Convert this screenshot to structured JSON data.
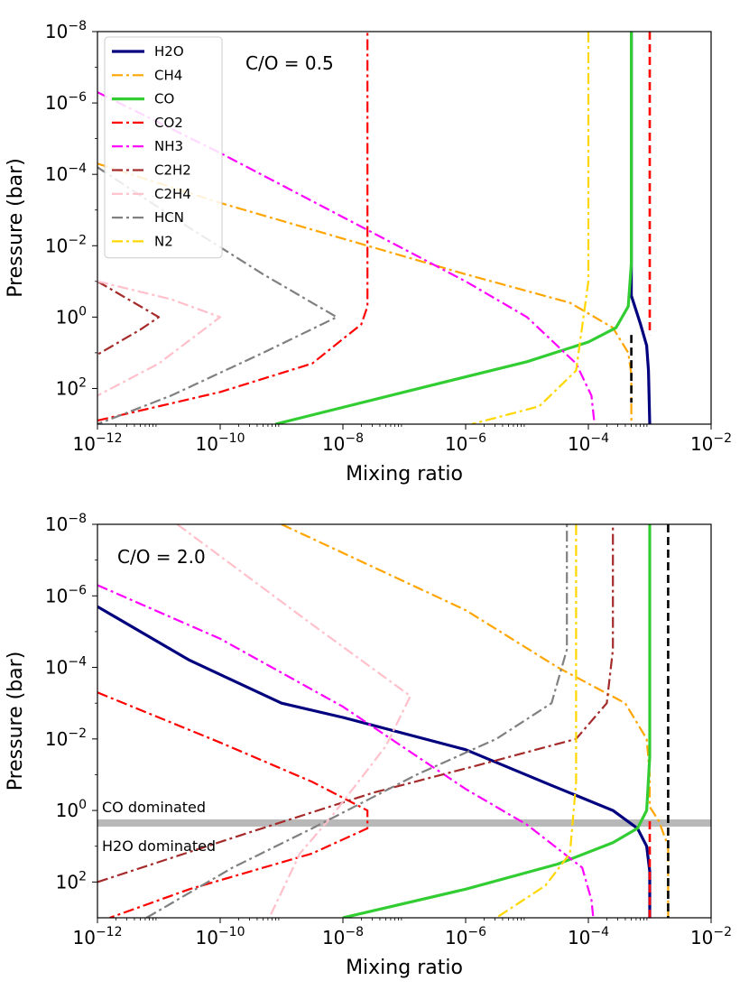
{
  "chart_data": [
    {
      "type": "line",
      "title": "",
      "annotation": "C/O = 0.5",
      "xlabel": "Mixing ratio",
      "ylabel": "Pressure (bar)",
      "xscale": "log",
      "yscale": "log",
      "xlim_exp": [
        -12,
        -2
      ],
      "ylim_exp": [
        3,
        -8
      ],
      "y_inverted": true,
      "xticks": [
        {
          "base": "10",
          "exp": "−12",
          "value": -12
        },
        {
          "base": "10",
          "exp": "−10",
          "value": -10
        },
        {
          "base": "10",
          "exp": "−8",
          "value": -8
        },
        {
          "base": "10",
          "exp": "−6",
          "value": -6
        },
        {
          "base": "10",
          "exp": "−4",
          "value": -4
        },
        {
          "base": "10",
          "exp": "−2",
          "value": -2
        }
      ],
      "yticks": [
        {
          "base": "10",
          "exp": "−8",
          "value": -8
        },
        {
          "base": "10",
          "exp": "−6",
          "value": -6
        },
        {
          "base": "10",
          "exp": "−4",
          "value": -4
        },
        {
          "base": "10",
          "exp": "−2",
          "value": -2
        },
        {
          "base": "10",
          "exp": "0",
          "value": 0
        },
        {
          "base": "10",
          "exp": "2",
          "value": 2
        }
      ],
      "legend": {
        "placement": "top-left",
        "entries": [
          "H2O",
          "CH4",
          "CO",
          "CO2",
          "NH3",
          "C2H2",
          "C2H4",
          "HCN",
          "N2"
        ]
      },
      "series": [
        {
          "name": "H2O",
          "color": "#00007f",
          "style": "solid",
          "points": [
            [
              -3.3,
              -8
            ],
            [
              -3.3,
              -0.6
            ],
            [
              -3.15,
              0.2
            ],
            [
              -3.05,
              0.8
            ],
            [
              -3.02,
              1.5
            ],
            [
              -3.0,
              3
            ]
          ]
        },
        {
          "name": "CH4",
          "color": "#ffa500",
          "style": "dashdot",
          "points": [
            [
              -12,
              -4.3
            ],
            [
              -10,
              -3.2
            ],
            [
              -8,
              -2.2
            ],
            [
              -6,
              -1.2
            ],
            [
              -4.3,
              -0.4
            ],
            [
              -3.6,
              0.3
            ],
            [
              -3.35,
              1.0
            ],
            [
              -3.3,
              1.6
            ],
            [
              -3.3,
              3
            ]
          ]
        },
        {
          "name": "CO",
          "color": "#32cd32",
          "style": "solid",
          "points": [
            [
              -9.1,
              3
            ],
            [
              -7,
              2.1
            ],
            [
              -5,
              1.25
            ],
            [
              -4,
              0.7
            ],
            [
              -3.55,
              0.3
            ],
            [
              -3.35,
              -0.3
            ],
            [
              -3.3,
              -1.5
            ],
            [
              -3.3,
              -8
            ]
          ]
        },
        {
          "name": "CO2",
          "color": "#ff0000",
          "style": "dashdot",
          "points": [
            [
              -12,
              2.9
            ],
            [
              -10,
              2.1
            ],
            [
              -8.5,
              1.3
            ],
            [
              -7.7,
              0.2
            ],
            [
              -7.6,
              -0.3
            ],
            [
              -7.6,
              -8
            ]
          ]
        },
        {
          "name": "CO2 (upper)",
          "color": "#ff0000",
          "style": "dashed",
          "points": [
            [
              -3.0,
              -8
            ],
            [
              -3.0,
              0.5
            ]
          ]
        },
        {
          "name": "NH3",
          "color": "#ff00ff",
          "style": "dashdot",
          "points": [
            [
              -12,
              -6.3
            ],
            [
              -10,
              -4.6
            ],
            [
              -8,
              -2.8
            ],
            [
              -6,
              -1.0
            ],
            [
              -5,
              0.0
            ],
            [
              -4.2,
              1.3
            ],
            [
              -3.95,
              2.2
            ],
            [
              -3.9,
              3
            ]
          ]
        },
        {
          "name": "C2H2",
          "color": "#a52a2a",
          "style": "dashdot",
          "points": [
            [
              -12,
              -1.0
            ],
            [
              -11.3,
              -0.3
            ],
            [
              -11.0,
              0.0
            ],
            [
              -11.3,
              0.35
            ],
            [
              -12,
              1.05
            ]
          ]
        },
        {
          "name": "C2H4",
          "color": "#ffc0cb",
          "style": "dashdot",
          "points": [
            [
              -12,
              -1.0
            ],
            [
              -10.8,
              -0.5
            ],
            [
              -10.0,
              0.0
            ],
            [
              -11.0,
              1.3
            ],
            [
              -12,
              2.2
            ]
          ]
        },
        {
          "name": "HCN",
          "color": "#808080",
          "style": "dashdot",
          "points": [
            [
              -12,
              -4.2
            ],
            [
              -10.5,
              -2.5
            ],
            [
              -9.3,
              -1.2
            ],
            [
              -8.1,
              0.0
            ],
            [
              -9.3,
              1.0
            ],
            [
              -10.8,
              2.2
            ],
            [
              -12,
              3
            ]
          ]
        },
        {
          "name": "N2",
          "color": "#ffd700",
          "style": "dashdot",
          "points": [
            [
              -4.0,
              -8
            ],
            [
              -4.0,
              -1.0
            ],
            [
              -4.2,
              1.5
            ],
            [
              -4.8,
              2.5
            ],
            [
              -5.9,
              3
            ]
          ]
        },
        {
          "name": "total (black)",
          "color": "#000000",
          "style": "dashed",
          "points": [
            [
              -3.3,
              0.5
            ],
            [
              -3.3,
              2.4
            ]
          ]
        }
      ]
    },
    {
      "type": "line",
      "title": "",
      "annotation": "C/O = 2.0",
      "xlabel": "Mixing ratio",
      "ylabel": "Pressure (bar)",
      "xscale": "log",
      "yscale": "log",
      "xlim_exp": [
        -12,
        -2
      ],
      "ylim_exp": [
        3,
        -8
      ],
      "y_inverted": true,
      "xticks": [
        {
          "base": "10",
          "exp": "−12",
          "value": -12
        },
        {
          "base": "10",
          "exp": "−10",
          "value": -10
        },
        {
          "base": "10",
          "exp": "−8",
          "value": -8
        },
        {
          "base": "10",
          "exp": "−6",
          "value": -6
        },
        {
          "base": "10",
          "exp": "−4",
          "value": -4
        },
        {
          "base": "10",
          "exp": "−2",
          "value": -2
        }
      ],
      "yticks": [
        {
          "base": "10",
          "exp": "−8",
          "value": -8
        },
        {
          "base": "10",
          "exp": "−6",
          "value": -6
        },
        {
          "base": "10",
          "exp": "−4",
          "value": -4
        },
        {
          "base": "10",
          "exp": "−2",
          "value": -2
        },
        {
          "base": "10",
          "exp": "0",
          "value": 0
        },
        {
          "base": "10",
          "exp": "2",
          "value": 2
        }
      ],
      "band": {
        "log_pressure": 0.35,
        "color": "#b8b8b8",
        "label_above": "CO dominated",
        "label_below": "H2O dominated"
      },
      "series": [
        {
          "name": "H2O",
          "color": "#00007f",
          "style": "solid",
          "points": [
            [
              -12,
              -5.7
            ],
            [
              -10.5,
              -4.2
            ],
            [
              -9,
              -3.0
            ],
            [
              -8,
              -2.6
            ],
            [
              -6,
              -1.7
            ],
            [
              -4.6,
              -0.7
            ],
            [
              -3.6,
              0.0
            ],
            [
              -3.2,
              0.5
            ],
            [
              -3.05,
              1.0
            ],
            [
              -3.0,
              1.7
            ],
            [
              -3.0,
              3
            ]
          ]
        },
        {
          "name": "CH4",
          "color": "#ffa500",
          "style": "dashdot",
          "points": [
            [
              -9.0,
              -8
            ],
            [
              -6,
              -5.6
            ],
            [
              -4.5,
              -4.0
            ],
            [
              -3.4,
              -3.0
            ],
            [
              -3.05,
              -2.0
            ],
            [
              -3.0,
              -1.0
            ],
            [
              -3.0,
              -0.1
            ],
            [
              -2.85,
              0.3
            ],
            [
              -2.7,
              1.0
            ],
            [
              -2.7,
              3
            ]
          ]
        },
        {
          "name": "CO",
          "color": "#32cd32",
          "style": "solid",
          "points": [
            [
              -8.0,
              3
            ],
            [
              -6.0,
              2.2
            ],
            [
              -4.5,
              1.5
            ],
            [
              -3.6,
              0.9
            ],
            [
              -3.2,
              0.5
            ],
            [
              -3.05,
              0.0
            ],
            [
              -3.0,
              -1.5
            ],
            [
              -3.0,
              -8
            ]
          ]
        },
        {
          "name": "CO2",
          "color": "#ff0000",
          "style": "dashdot",
          "points": [
            [
              -12,
              -3.3
            ],
            [
              -10,
              -1.9
            ],
            [
              -8.5,
              -0.8
            ],
            [
              -7.6,
              0.0
            ],
            [
              -7.6,
              0.5
            ],
            [
              -8.5,
              1.2
            ],
            [
              -10.5,
              2.2
            ],
            [
              -11.8,
              3
            ]
          ]
        },
        {
          "name": "CO2 (upper)",
          "color": "#ff0000",
          "style": "dashed",
          "points": [
            [
              -3.0,
              0.3
            ],
            [
              -3.0,
              3
            ]
          ]
        },
        {
          "name": "NH3",
          "color": "#ff00ff",
          "style": "dashdot",
          "points": [
            [
              -12,
              -6.3
            ],
            [
              -10,
              -4.8
            ],
            [
              -8,
              -2.9
            ],
            [
              -6,
              -0.6
            ],
            [
              -5,
              0.4
            ],
            [
              -4.1,
              1.6
            ],
            [
              -3.95,
              2.5
            ],
            [
              -3.92,
              3
            ]
          ]
        },
        {
          "name": "C2H2",
          "color": "#a52a2a",
          "style": "dashdot",
          "points": [
            [
              -12,
              2.0
            ],
            [
              -9.5,
              0.6
            ],
            [
              -7.5,
              -0.5
            ],
            [
              -5.5,
              -1.4
            ],
            [
              -4.2,
              -2.0
            ],
            [
              -3.7,
              -3.0
            ],
            [
              -3.6,
              -4.5
            ],
            [
              -3.6,
              -8
            ]
          ]
        },
        {
          "name": "C2H4",
          "color": "#ffc0cb",
          "style": "dashdot",
          "points": [
            [
              -10.7,
              -8
            ],
            [
              -8.5,
              -5.2
            ],
            [
              -6.9,
              -3.2
            ],
            [
              -7.3,
              -1.8
            ],
            [
              -8.2,
              0.2
            ],
            [
              -8.7,
              1.2
            ],
            [
              -9.2,
              3
            ]
          ]
        },
        {
          "name": "HCN",
          "color": "#808080",
          "style": "dashdot",
          "points": [
            [
              -11.2,
              3
            ],
            [
              -9.8,
              1.6
            ],
            [
              -8.5,
              0.5
            ],
            [
              -6.8,
              -1.0
            ],
            [
              -5.5,
              -2.0
            ],
            [
              -4.6,
              -3.0
            ],
            [
              -4.35,
              -4.5
            ],
            [
              -4.35,
              -8
            ]
          ]
        },
        {
          "name": "N2",
          "color": "#ffd700",
          "style": "dashdot",
          "points": [
            [
              -4.2,
              -8
            ],
            [
              -4.2,
              -0.8
            ],
            [
              -4.3,
              1.2
            ],
            [
              -4.7,
              2.1
            ],
            [
              -5.5,
              3
            ]
          ]
        },
        {
          "name": "total (black)",
          "color": "#000000",
          "style": "dashed",
          "points": [
            [
              -2.7,
              -8
            ],
            [
              -2.7,
              3
            ]
          ]
        }
      ]
    }
  ]
}
